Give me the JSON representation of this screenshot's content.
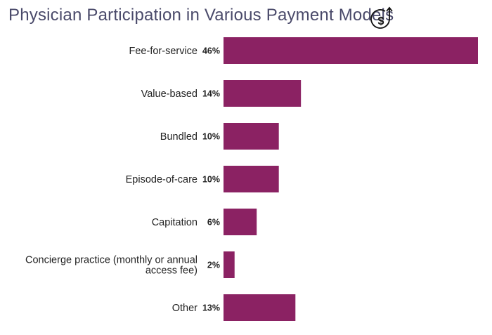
{
  "title": "Physician Participation in Various Payment Models",
  "icon": "dollar-up-arrow-icon",
  "chart_data": {
    "type": "bar",
    "orientation": "horizontal",
    "title": "Physician Participation in Various Payment Models",
    "bar_color": "#8b2263",
    "categories": [
      [
        "Fee-for-service"
      ],
      [
        "Value-based"
      ],
      [
        "Bundled"
      ],
      [
        "Episode-of-care"
      ],
      [
        "Capitation"
      ],
      [
        "Concierge practice (monthly or annual",
        "access fee)"
      ],
      [
        "Other"
      ]
    ],
    "values": [
      46,
      14,
      10,
      10,
      6,
      2,
      13
    ],
    "value_labels": [
      "46%",
      "14%",
      "10%",
      "10%",
      "6%",
      "2%",
      "13%"
    ],
    "xlim": [
      0,
      46
    ],
    "grid": false,
    "legend": "none"
  }
}
